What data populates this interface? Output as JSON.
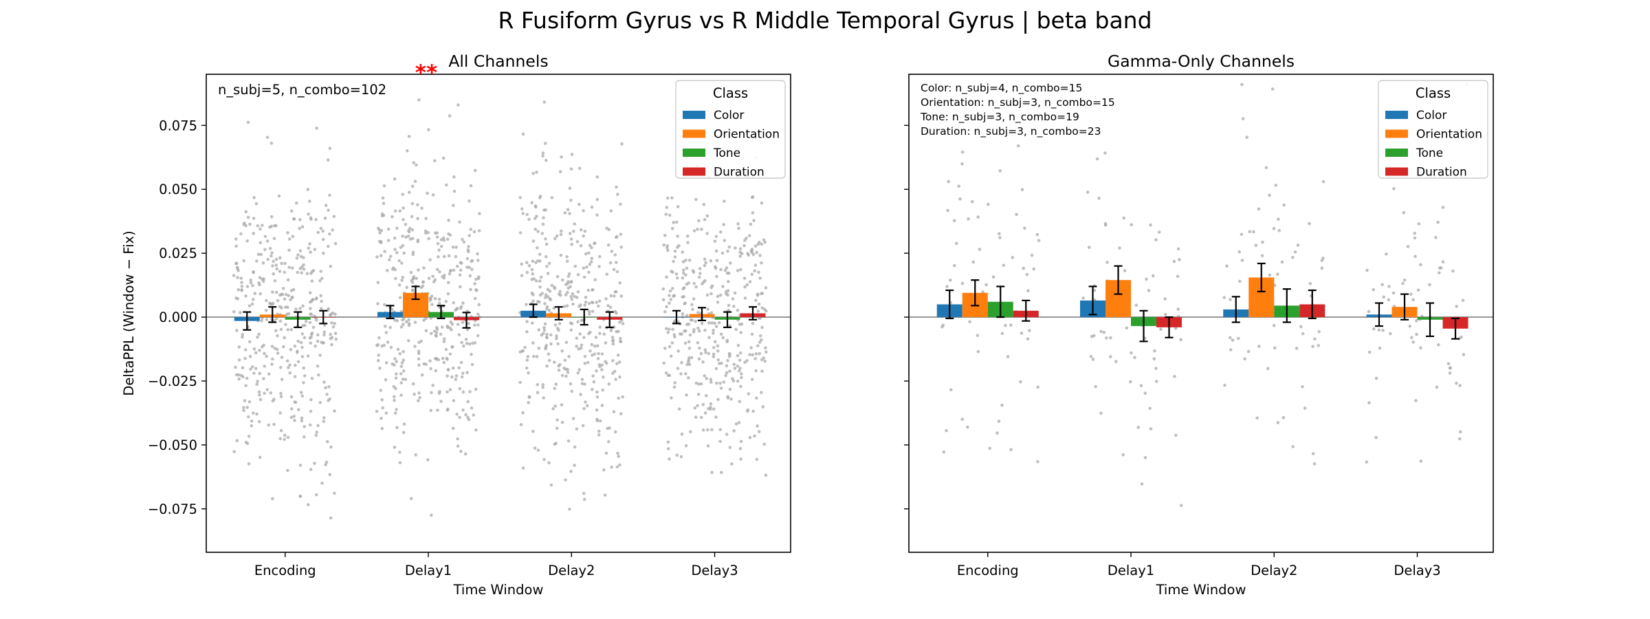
{
  "figure_title": "R Fusiform Gyrus vs R Middle Temporal Gyrus  |  beta band",
  "colors": {
    "Color": "#1f77b4",
    "Orientation": "#ff7f0e",
    "Tone": "#2ca02c",
    "Duration": "#d62728",
    "points": "#a9a9a9",
    "significance": "#ff0000"
  },
  "chart_data": [
    {
      "type": "bar",
      "title": "All Channels",
      "xlabel": "Time Window",
      "ylabel": "DeltaPPL (Window − Fix)",
      "ylim": [
        -0.092,
        0.095
      ],
      "yticks": [
        "0.075",
        "0.050",
        "0.025",
        "0.000",
        "−0.025",
        "−0.050",
        "−0.075"
      ],
      "ytick_values": [
        0.075,
        0.05,
        0.025,
        0.0,
        -0.025,
        -0.05,
        -0.075
      ],
      "categories": [
        "Encoding",
        "Delay1",
        "Delay2",
        "Delay3"
      ],
      "series": [
        {
          "name": "Color",
          "values": [
            -0.0015,
            0.002,
            0.0025,
            0.0
          ],
          "errors": [
            0.0035,
            0.0025,
            0.0025,
            0.0025
          ]
        },
        {
          "name": "Orientation",
          "values": [
            0.001,
            0.0095,
            0.0015,
            0.0012
          ],
          "errors": [
            0.003,
            0.0025,
            0.0025,
            0.0025
          ]
        },
        {
          "name": "Tone",
          "values": [
            -0.001,
            0.002,
            0.0,
            -0.001
          ],
          "errors": [
            0.003,
            0.0025,
            0.003,
            0.003
          ]
        },
        {
          "name": "Duration",
          "values": [
            0.0,
            -0.0012,
            -0.001,
            0.0015
          ],
          "errors": [
            0.0025,
            0.003,
            0.003,
            0.0025
          ]
        }
      ],
      "legend": {
        "title": "Class",
        "position": "top-right"
      },
      "annotation": "n_subj=5, n_combo=102",
      "significance": {
        "label": "**",
        "position": "left of title"
      },
      "scatter_per_bar": 102,
      "scatter_spread": 0.028
    },
    {
      "type": "bar",
      "title": "Gamma-Only Channels",
      "xlabel": "Time Window",
      "ylabel": "",
      "ylim": [
        -0.092,
        0.095
      ],
      "yticks": [],
      "ytick_values": [
        0.075,
        0.05,
        0.025,
        0.0,
        -0.025,
        -0.05,
        -0.075
      ],
      "categories": [
        "Encoding",
        "Delay1",
        "Delay2",
        "Delay3"
      ],
      "series": [
        {
          "name": "Color",
          "values": [
            0.005,
            0.0065,
            0.003,
            0.001
          ],
          "errors": [
            0.0055,
            0.0055,
            0.005,
            0.0045
          ]
        },
        {
          "name": "Orientation",
          "values": [
            0.0095,
            0.0145,
            0.0155,
            0.004
          ],
          "errors": [
            0.005,
            0.0055,
            0.0055,
            0.005
          ]
        },
        {
          "name": "Tone",
          "values": [
            0.006,
            -0.0035,
            0.0045,
            -0.001
          ],
          "errors": [
            0.006,
            0.006,
            0.0065,
            0.0065
          ]
        },
        {
          "name": "Duration",
          "values": [
            0.0025,
            -0.004,
            0.005,
            -0.0045
          ],
          "errors": [
            0.004,
            0.004,
            0.0055,
            0.004
          ]
        }
      ],
      "legend": {
        "title": "Class",
        "position": "top-right"
      },
      "annotation_lines": [
        "Color: n_subj=4, n_combo=15",
        "Orientation: n_subj=3, n_combo=15",
        "Tone: n_subj=3, n_combo=19",
        "Duration: n_subj=3, n_combo=23"
      ],
      "scatter_per_bar": 18,
      "scatter_spread": 0.028
    }
  ]
}
